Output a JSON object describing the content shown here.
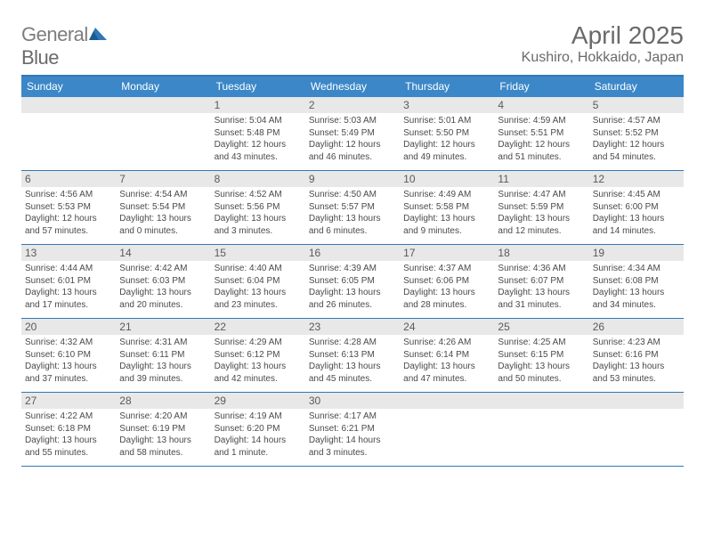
{
  "brand": {
    "part1": "General",
    "part2": "Blue"
  },
  "title": "April 2025",
  "location": "Kushiro, Hokkaido, Japan",
  "colors": {
    "header_bg": "#3b87c8",
    "rule": "#2f78b7",
    "daynum_bg": "#e8e8e8",
    "text_muted": "#6a6a6a",
    "cell_text": "#4a4a4a"
  },
  "day_names": [
    "Sunday",
    "Monday",
    "Tuesday",
    "Wednesday",
    "Thursday",
    "Friday",
    "Saturday"
  ],
  "weeks": [
    [
      {
        "blank": true
      },
      {
        "blank": true
      },
      {
        "n": "1",
        "sr": "5:04 AM",
        "ss": "5:48 PM",
        "dl": "12 hours and 43 minutes."
      },
      {
        "n": "2",
        "sr": "5:03 AM",
        "ss": "5:49 PM",
        "dl": "12 hours and 46 minutes."
      },
      {
        "n": "3",
        "sr": "5:01 AM",
        "ss": "5:50 PM",
        "dl": "12 hours and 49 minutes."
      },
      {
        "n": "4",
        "sr": "4:59 AM",
        "ss": "5:51 PM",
        "dl": "12 hours and 51 minutes."
      },
      {
        "n": "5",
        "sr": "4:57 AM",
        "ss": "5:52 PM",
        "dl": "12 hours and 54 minutes."
      }
    ],
    [
      {
        "n": "6",
        "sr": "4:56 AM",
        "ss": "5:53 PM",
        "dl": "12 hours and 57 minutes."
      },
      {
        "n": "7",
        "sr": "4:54 AM",
        "ss": "5:54 PM",
        "dl": "13 hours and 0 minutes."
      },
      {
        "n": "8",
        "sr": "4:52 AM",
        "ss": "5:56 PM",
        "dl": "13 hours and 3 minutes."
      },
      {
        "n": "9",
        "sr": "4:50 AM",
        "ss": "5:57 PM",
        "dl": "13 hours and 6 minutes."
      },
      {
        "n": "10",
        "sr": "4:49 AM",
        "ss": "5:58 PM",
        "dl": "13 hours and 9 minutes."
      },
      {
        "n": "11",
        "sr": "4:47 AM",
        "ss": "5:59 PM",
        "dl": "13 hours and 12 minutes."
      },
      {
        "n": "12",
        "sr": "4:45 AM",
        "ss": "6:00 PM",
        "dl": "13 hours and 14 minutes."
      }
    ],
    [
      {
        "n": "13",
        "sr": "4:44 AM",
        "ss": "6:01 PM",
        "dl": "13 hours and 17 minutes."
      },
      {
        "n": "14",
        "sr": "4:42 AM",
        "ss": "6:03 PM",
        "dl": "13 hours and 20 minutes."
      },
      {
        "n": "15",
        "sr": "4:40 AM",
        "ss": "6:04 PM",
        "dl": "13 hours and 23 minutes."
      },
      {
        "n": "16",
        "sr": "4:39 AM",
        "ss": "6:05 PM",
        "dl": "13 hours and 26 minutes."
      },
      {
        "n": "17",
        "sr": "4:37 AM",
        "ss": "6:06 PM",
        "dl": "13 hours and 28 minutes."
      },
      {
        "n": "18",
        "sr": "4:36 AM",
        "ss": "6:07 PM",
        "dl": "13 hours and 31 minutes."
      },
      {
        "n": "19",
        "sr": "4:34 AM",
        "ss": "6:08 PM",
        "dl": "13 hours and 34 minutes."
      }
    ],
    [
      {
        "n": "20",
        "sr": "4:32 AM",
        "ss": "6:10 PM",
        "dl": "13 hours and 37 minutes."
      },
      {
        "n": "21",
        "sr": "4:31 AM",
        "ss": "6:11 PM",
        "dl": "13 hours and 39 minutes."
      },
      {
        "n": "22",
        "sr": "4:29 AM",
        "ss": "6:12 PM",
        "dl": "13 hours and 42 minutes."
      },
      {
        "n": "23",
        "sr": "4:28 AM",
        "ss": "6:13 PM",
        "dl": "13 hours and 45 minutes."
      },
      {
        "n": "24",
        "sr": "4:26 AM",
        "ss": "6:14 PM",
        "dl": "13 hours and 47 minutes."
      },
      {
        "n": "25",
        "sr": "4:25 AM",
        "ss": "6:15 PM",
        "dl": "13 hours and 50 minutes."
      },
      {
        "n": "26",
        "sr": "4:23 AM",
        "ss": "6:16 PM",
        "dl": "13 hours and 53 minutes."
      }
    ],
    [
      {
        "n": "27",
        "sr": "4:22 AM",
        "ss": "6:18 PM",
        "dl": "13 hours and 55 minutes."
      },
      {
        "n": "28",
        "sr": "4:20 AM",
        "ss": "6:19 PM",
        "dl": "13 hours and 58 minutes."
      },
      {
        "n": "29",
        "sr": "4:19 AM",
        "ss": "6:20 PM",
        "dl": "14 hours and 1 minute."
      },
      {
        "n": "30",
        "sr": "4:17 AM",
        "ss": "6:21 PM",
        "dl": "14 hours and 3 minutes."
      },
      {
        "blank": true
      },
      {
        "blank": true
      },
      {
        "blank": true
      }
    ]
  ],
  "labels": {
    "sunrise": "Sunrise:",
    "sunset": "Sunset:",
    "daylight": "Daylight:"
  }
}
